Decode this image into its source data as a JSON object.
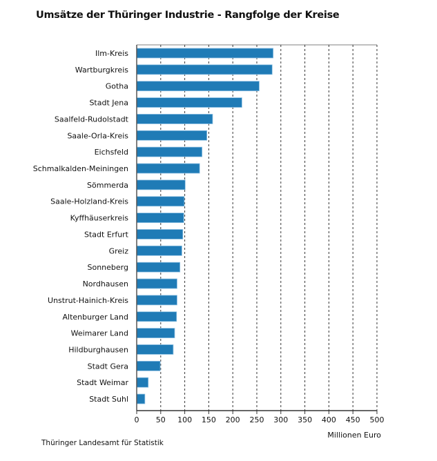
{
  "chart_data": {
    "type": "bar",
    "orientation": "horizontal",
    "title": "Umsätze der Thüringer Industrie - Rangfolge der Kreise",
    "xlabel": "Millionen Euro",
    "ylabel": "",
    "xlim": [
      0,
      500
    ],
    "xticks": [
      "0",
      "50",
      "100",
      "150",
      "200",
      "250",
      "300",
      "350",
      "400",
      "450",
      "500"
    ],
    "grid": "vertical dashed",
    "bar_color": "#1f7bb6",
    "categories": [
      "Ilm-Kreis",
      "Wartburgkreis",
      "Gotha",
      "Stadt Jena",
      "Saalfeld-Rudolstadt",
      "Saale-Orla-Kreis",
      "Eichsfeld",
      "Schmalkalden-Meiningen",
      "Sömmerda",
      "Saale-Holzland-Kreis",
      "Kyffhäuserkreis",
      "Stadt Erfurt",
      "Greiz",
      "Sonneberg",
      "Nordhausen",
      "Unstrut-Hainich-Kreis",
      "Altenburger Land",
      "Weimarer Land",
      "Hildburghausen",
      "Stadt Gera",
      "Stadt Weimar",
      "Stadt Suhl"
    ],
    "values": [
      284,
      282,
      255,
      219,
      158,
      146,
      136,
      131,
      101,
      99,
      98,
      96,
      94,
      90,
      84,
      84,
      83,
      79,
      76,
      49,
      24,
      17
    ]
  },
  "source": "Thüringer Landesamt für Statistik"
}
